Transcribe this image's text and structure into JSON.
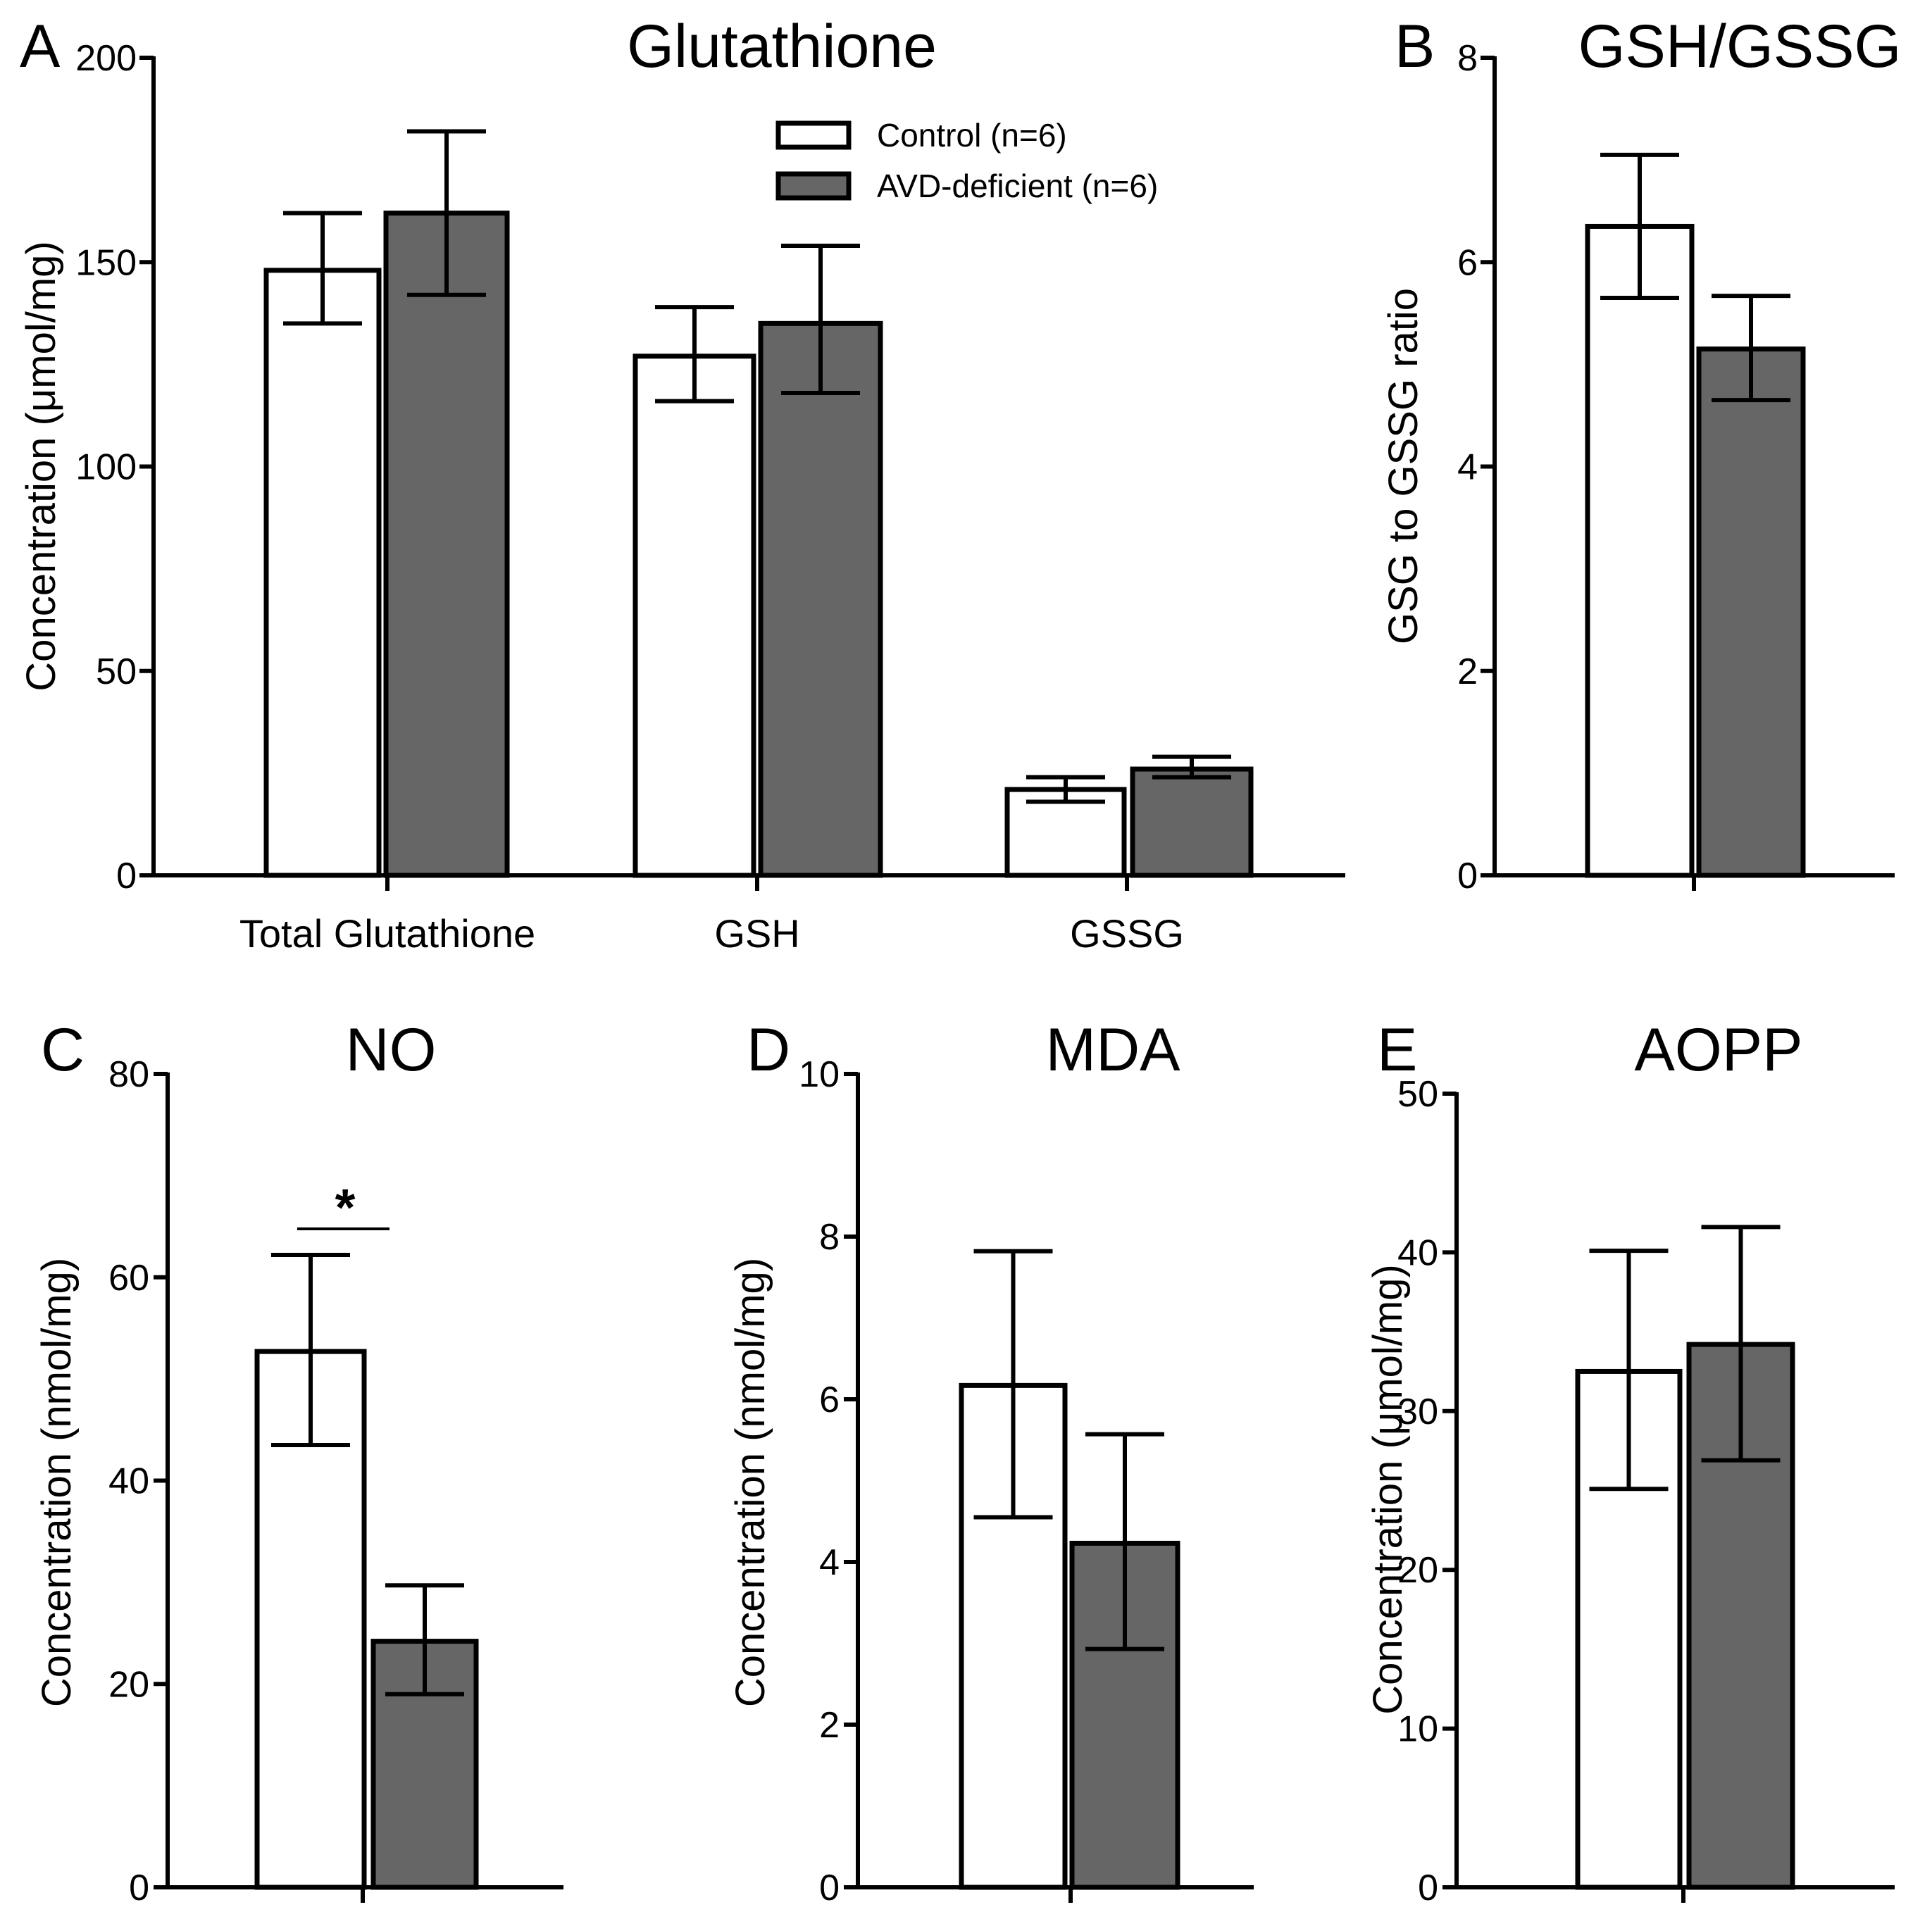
{
  "colors": {
    "control_fill": "#ffffff",
    "deficient_fill": "#666666",
    "stroke": "#000000"
  },
  "legend": {
    "control": "Control (n=6)",
    "deficient": "AVD-deficient (n=6)"
  },
  "chart_data": [
    {
      "letter": "A",
      "type": "bar",
      "title": "Glutathione",
      "ylabel": "Concentration (μmol/mg)",
      "ylim": [
        0,
        200
      ],
      "yticks": [
        "0",
        "50",
        "100",
        "150",
        "200"
      ],
      "categories": [
        "Total Glutathione",
        "GSH",
        "GSSG"
      ],
      "series": [
        {
          "name": "Control (n=6)",
          "values": [
            148,
            127,
            21
          ],
          "err_low": [
            135,
            116,
            18
          ],
          "err_high": [
            162,
            139,
            24
          ]
        },
        {
          "name": "AVD-deficient (n=6)",
          "values": [
            162,
            135,
            26
          ],
          "err_low": [
            142,
            118,
            24
          ],
          "err_high": [
            182,
            154,
            29
          ]
        }
      ]
    },
    {
      "letter": "B",
      "type": "bar",
      "title": "GSH/GSSG",
      "ylabel": "GSG to GSSG ratio",
      "ylim": [
        0,
        8
      ],
      "yticks": [
        "0",
        "2",
        "4",
        "6",
        "8"
      ],
      "categories": [
        ""
      ],
      "series": [
        {
          "name": "Control (n=6)",
          "values": [
            6.35
          ],
          "err_low": [
            5.65
          ],
          "err_high": [
            7.05
          ]
        },
        {
          "name": "AVD-deficient (n=6)",
          "values": [
            5.15
          ],
          "err_low": [
            4.65
          ],
          "err_high": [
            5.67
          ]
        }
      ]
    },
    {
      "letter": "C",
      "type": "bar",
      "title": "NO",
      "ylabel": "Concentration (nmol/mg)",
      "ylim": [
        0,
        80
      ],
      "yticks": [
        "0",
        "20",
        "40",
        "60",
        "80"
      ],
      "categories": [
        ""
      ],
      "annotation": "*",
      "series": [
        {
          "name": "Control (n=6)",
          "values": [
            52.7
          ],
          "err_low": [
            43.5
          ],
          "err_high": [
            62.2
          ]
        },
        {
          "name": "AVD-deficient (n=6)",
          "values": [
            24.2
          ],
          "err_low": [
            19
          ],
          "err_high": [
            29.7
          ]
        }
      ]
    },
    {
      "letter": "D",
      "type": "bar",
      "title": "MDA",
      "ylabel": "Concentration (nmol/mg)",
      "ylim": [
        0,
        10
      ],
      "yticks": [
        "0",
        "2",
        "4",
        "6",
        "8",
        "10"
      ],
      "categories": [
        ""
      ],
      "series": [
        {
          "name": "Control (n=6)",
          "values": [
            6.17
          ],
          "err_low": [
            4.55
          ],
          "err_high": [
            7.82
          ]
        },
        {
          "name": "AVD-deficient (n=6)",
          "values": [
            4.23
          ],
          "err_low": [
            2.93
          ],
          "err_high": [
            5.57
          ]
        }
      ]
    },
    {
      "letter": "E",
      "type": "bar",
      "title": "AOPP",
      "ylabel": "Concentration (μmol/mg)",
      "ylim": [
        0,
        50
      ],
      "yticks": [
        "0",
        "10",
        "20",
        "30",
        "40",
        "50"
      ],
      "categories": [
        ""
      ],
      "series": [
        {
          "name": "Control (n=6)",
          "values": [
            32.5
          ],
          "err_low": [
            25.1
          ],
          "err_high": [
            40.1
          ]
        },
        {
          "name": "AVD-deficient (n=6)",
          "values": [
            34.2
          ],
          "err_low": [
            26.9
          ],
          "err_high": [
            41.6
          ]
        }
      ]
    }
  ]
}
